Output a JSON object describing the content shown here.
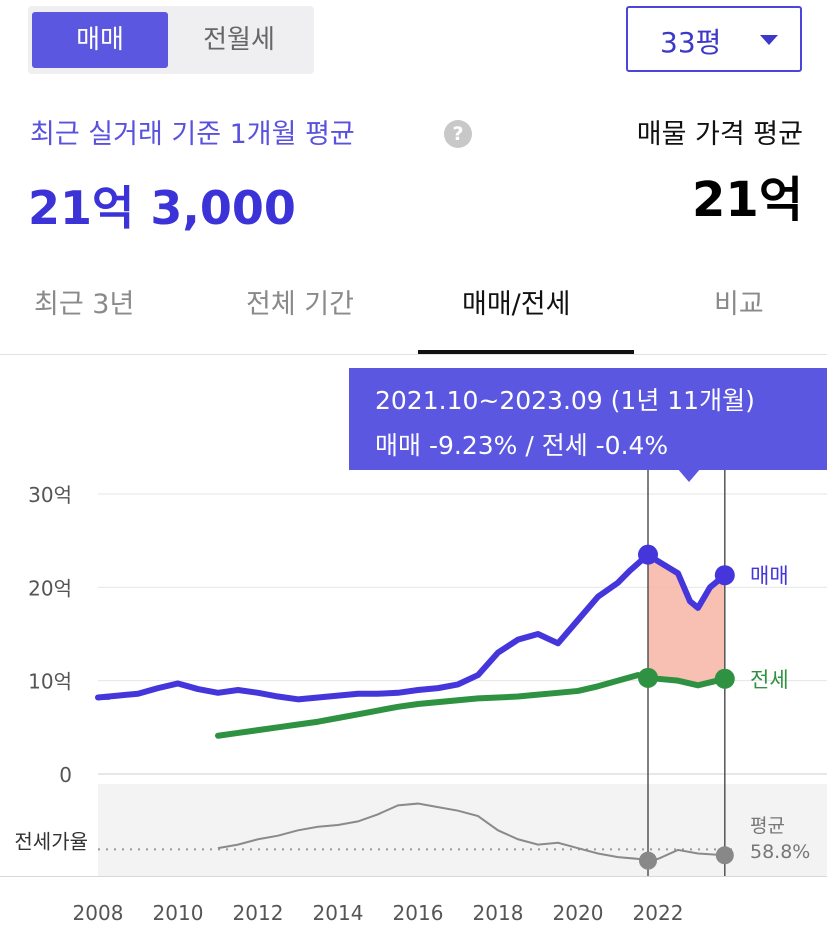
{
  "toggle": {
    "sale_label": "매매",
    "lease_label": "전월세"
  },
  "size_select": {
    "value": "33평"
  },
  "summary": {
    "recent_label": "최근 실거래 기준 1개월 평균",
    "recent_value": "21억 3,000",
    "listing_label": "매물 가격 평균",
    "listing_value": "21억"
  },
  "help_icon_glyph": "?",
  "tabs": [
    {
      "label": "최근 3년"
    },
    {
      "label": "전체 기간"
    },
    {
      "label": "매매/전세"
    },
    {
      "label": "비교"
    }
  ],
  "tooltip": {
    "line1": "2021.10~2023.09 (1년 11개월)",
    "line2": "매매 -9.23%  /  전세 -0.4%"
  },
  "colors": {
    "sale": "#4536dc",
    "lease": "#2f9142",
    "ratio": "#8a8a8a",
    "highlight": "#f7b4a6",
    "accent": "#5b57e0"
  },
  "chart_data": {
    "type": "line",
    "y_unit": "억",
    "ylim": [
      0,
      30
    ],
    "y_ticks": [
      {
        "v": 30,
        "label": "30억"
      },
      {
        "v": 20,
        "label": "20억"
      },
      {
        "v": 10,
        "label": "10억"
      },
      {
        "v": 0,
        "label": "0"
      }
    ],
    "x_ticks": [
      "2008",
      "2010",
      "2012",
      "2014",
      "2016",
      "2018",
      "2020",
      "2022"
    ],
    "xlim": [
      2008,
      2024
    ],
    "highlight_range": [
      2021.75,
      2023.67
    ],
    "series": [
      {
        "name": "매매",
        "label_end": "매매",
        "points": [
          [
            2008,
            8.2
          ],
          [
            2008.5,
            8.4
          ],
          [
            2009,
            8.6
          ],
          [
            2009.5,
            9.2
          ],
          [
            2010,
            9.7
          ],
          [
            2010.5,
            9.1
          ],
          [
            2011,
            8.7
          ],
          [
            2011.5,
            9.0
          ],
          [
            2012,
            8.7
          ],
          [
            2012.5,
            8.3
          ],
          [
            2013,
            8.0
          ],
          [
            2013.5,
            8.2
          ],
          [
            2014,
            8.4
          ],
          [
            2014.5,
            8.6
          ],
          [
            2015,
            8.6
          ],
          [
            2015.5,
            8.7
          ],
          [
            2016,
            9.0
          ],
          [
            2016.5,
            9.2
          ],
          [
            2017,
            9.6
          ],
          [
            2017.5,
            10.6
          ],
          [
            2018,
            13.0
          ],
          [
            2018.5,
            14.4
          ],
          [
            2019,
            15.0
          ],
          [
            2019.5,
            14.0
          ],
          [
            2020,
            16.5
          ],
          [
            2020.5,
            19.0
          ],
          [
            2021,
            20.5
          ],
          [
            2021.3,
            21.8
          ],
          [
            2021.75,
            23.5
          ],
          [
            2022,
            22.8
          ],
          [
            2022.5,
            21.5
          ],
          [
            2022.8,
            18.5
          ],
          [
            2023,
            17.8
          ],
          [
            2023.3,
            20.0
          ],
          [
            2023.67,
            21.3
          ]
        ]
      },
      {
        "name": "전세",
        "label_end": "전세",
        "points": [
          [
            2011,
            4.1
          ],
          [
            2011.5,
            4.4
          ],
          [
            2012,
            4.7
          ],
          [
            2012.5,
            5.0
          ],
          [
            2013,
            5.3
          ],
          [
            2013.5,
            5.6
          ],
          [
            2014,
            6.0
          ],
          [
            2014.5,
            6.4
          ],
          [
            2015,
            6.8
          ],
          [
            2015.5,
            7.2
          ],
          [
            2016,
            7.5
          ],
          [
            2016.5,
            7.7
          ],
          [
            2017,
            7.9
          ],
          [
            2017.5,
            8.1
          ],
          [
            2018,
            8.2
          ],
          [
            2018.5,
            8.3
          ],
          [
            2019,
            8.5
          ],
          [
            2019.5,
            8.7
          ],
          [
            2020,
            8.9
          ],
          [
            2020.5,
            9.4
          ],
          [
            2021,
            10.0
          ],
          [
            2021.5,
            10.6
          ],
          [
            2021.75,
            10.3
          ],
          [
            2022,
            10.2
          ],
          [
            2022.5,
            10.0
          ],
          [
            2023,
            9.5
          ],
          [
            2023.67,
            10.2
          ]
        ]
      }
    ],
    "ratio": {
      "name": "전세가율",
      "avg_label": "평균",
      "avg_value": "58.8%",
      "points": [
        [
          2011,
          55
        ],
        [
          2011.5,
          57
        ],
        [
          2012,
          60
        ],
        [
          2012.5,
          62
        ],
        [
          2013,
          65
        ],
        [
          2013.5,
          67
        ],
        [
          2014,
          68
        ],
        [
          2014.5,
          70
        ],
        [
          2015,
          74
        ],
        [
          2015.5,
          79
        ],
        [
          2016,
          80
        ],
        [
          2016.5,
          78
        ],
        [
          2017,
          76
        ],
        [
          2017.5,
          73
        ],
        [
          2018,
          65
        ],
        [
          2018.5,
          60
        ],
        [
          2019,
          57
        ],
        [
          2019.5,
          58
        ],
        [
          2020,
          55
        ],
        [
          2020.5,
          52
        ],
        [
          2021,
          50
        ],
        [
          2021.5,
          49
        ],
        [
          2021.75,
          48
        ],
        [
          2022,
          49
        ],
        [
          2022.5,
          54
        ],
        [
          2023,
          52
        ],
        [
          2023.67,
          51
        ]
      ]
    }
  }
}
